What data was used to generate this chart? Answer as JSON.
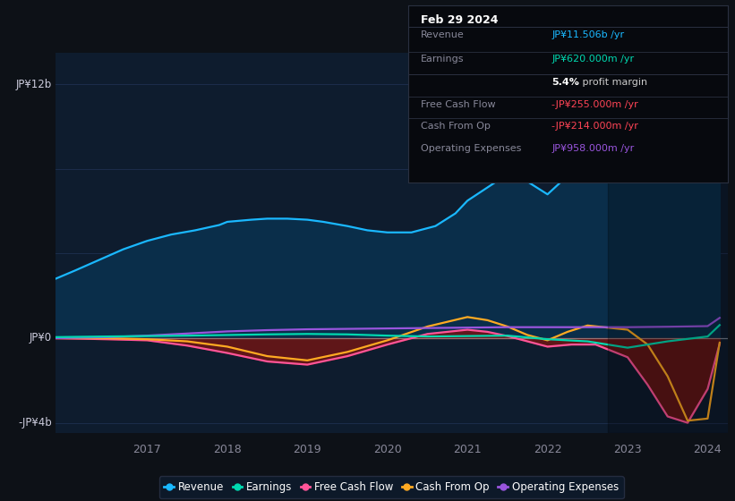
{
  "bg_color": "#0d1117",
  "chart_bg": "#0e1c2e",
  "xlim": [
    2015.85,
    2024.25
  ],
  "ylim": [
    -4.5,
    13.5
  ],
  "x_ticks": [
    2017,
    2018,
    2019,
    2020,
    2021,
    2022,
    2023,
    2024
  ],
  "y_labels": [
    {
      "text": "JP¥12b",
      "y": 12.0
    },
    {
      "text": "JP¥0",
      "y": 0.0
    },
    {
      "text": "-JP¥4b",
      "y": -4.0
    }
  ],
  "revenue": {
    "color": "#1ab8ff",
    "fill": "#0a2e4a",
    "x": [
      2015.85,
      2016.1,
      2016.4,
      2016.7,
      2017.0,
      2017.3,
      2017.6,
      2017.9,
      2018.0,
      2018.3,
      2018.5,
      2018.75,
      2019.0,
      2019.2,
      2019.5,
      2019.75,
      2020.0,
      2020.3,
      2020.6,
      2020.85,
      2021.0,
      2021.2,
      2021.4,
      2021.6,
      2021.75,
      2022.0,
      2022.2,
      2022.5,
      2022.75,
      2023.0,
      2023.2,
      2023.4,
      2023.6,
      2023.8,
      2024.0,
      2024.15
    ],
    "y": [
      2.8,
      3.2,
      3.7,
      4.2,
      4.6,
      4.9,
      5.1,
      5.35,
      5.5,
      5.6,
      5.65,
      5.65,
      5.6,
      5.5,
      5.3,
      5.1,
      5.0,
      5.0,
      5.3,
      5.9,
      6.5,
      7.0,
      7.5,
      7.6,
      7.4,
      6.8,
      7.5,
      8.6,
      9.0,
      9.6,
      10.4,
      9.9,
      9.6,
      9.5,
      9.8,
      11.5
    ]
  },
  "earnings": {
    "color": "#00d9b0",
    "x": [
      2015.85,
      2016.5,
      2017.0,
      2017.5,
      2018.0,
      2018.5,
      2019.0,
      2019.5,
      2020.0,
      2020.5,
      2021.0,
      2021.5,
      2022.0,
      2022.5,
      2022.75,
      2023.0,
      2023.5,
      2024.0,
      2024.15
    ],
    "y": [
      0.05,
      0.08,
      0.1,
      0.12,
      0.15,
      0.18,
      0.2,
      0.18,
      0.12,
      0.08,
      0.1,
      0.12,
      -0.05,
      -0.15,
      -0.3,
      -0.45,
      -0.15,
      0.08,
      0.62
    ]
  },
  "free_cash_flow": {
    "color": "#ff5599",
    "fill": "#6e1515",
    "x": [
      2015.85,
      2016.5,
      2017.0,
      2017.5,
      2018.0,
      2018.5,
      2019.0,
      2019.5,
      2020.0,
      2020.5,
      2021.0,
      2021.25,
      2021.5,
      2021.75,
      2022.0,
      2022.3,
      2022.6,
      2023.0,
      2023.25,
      2023.5,
      2023.75,
      2024.0,
      2024.15
    ],
    "y": [
      0.0,
      -0.05,
      -0.1,
      -0.35,
      -0.7,
      -1.1,
      -1.25,
      -0.85,
      -0.3,
      0.2,
      0.4,
      0.3,
      0.1,
      -0.15,
      -0.4,
      -0.3,
      -0.3,
      -0.9,
      -2.2,
      -3.7,
      -4.0,
      -2.4,
      -0.26
    ]
  },
  "cash_from_op": {
    "color": "#ffaa22",
    "x": [
      2015.85,
      2016.5,
      2017.0,
      2017.5,
      2018.0,
      2018.5,
      2019.0,
      2019.5,
      2020.0,
      2020.5,
      2021.0,
      2021.25,
      2021.5,
      2021.75,
      2022.0,
      2022.25,
      2022.5,
      2023.0,
      2023.25,
      2023.5,
      2023.75,
      2024.0,
      2024.15
    ],
    "y": [
      0.0,
      0.0,
      -0.05,
      -0.15,
      -0.4,
      -0.85,
      -1.05,
      -0.65,
      -0.1,
      0.55,
      1.0,
      0.85,
      0.55,
      0.15,
      -0.1,
      0.3,
      0.6,
      0.4,
      -0.3,
      -1.8,
      -3.9,
      -3.8,
      -0.21
    ]
  },
  "operating_expenses": {
    "color": "#9955dd",
    "x": [
      2015.85,
      2016.5,
      2017.0,
      2017.5,
      2018.0,
      2018.5,
      2019.0,
      2019.5,
      2020.0,
      2020.5,
      2021.0,
      2021.5,
      2022.0,
      2022.5,
      2023.0,
      2023.5,
      2024.0,
      2024.15
    ],
    "y": [
      0.0,
      0.05,
      0.12,
      0.22,
      0.32,
      0.38,
      0.42,
      0.44,
      0.46,
      0.48,
      0.5,
      0.52,
      0.52,
      0.52,
      0.52,
      0.54,
      0.57,
      0.96
    ]
  },
  "dark_span_start": 2022.75,
  "legend": [
    {
      "label": "Revenue",
      "color": "#1ab8ff"
    },
    {
      "label": "Earnings",
      "color": "#00d9b0"
    },
    {
      "label": "Free Cash Flow",
      "color": "#ff5599"
    },
    {
      "label": "Cash From Op",
      "color": "#ffaa22"
    },
    {
      "label": "Operating Expenses",
      "color": "#9955dd"
    }
  ],
  "info_box": {
    "title": "Feb 29 2024",
    "title_color": "#ffffff",
    "label_color": "#888899",
    "divider_color": "#2a3040",
    "bg": "#07090e",
    "rows": [
      {
        "label": "Revenue",
        "value": "JP¥11.506b /yr",
        "vcolor": "#1ab8ff",
        "bold": null
      },
      {
        "label": "Earnings",
        "value": "JP¥620.000m /yr",
        "vcolor": "#00d9b0",
        "bold": null
      },
      {
        "label": "",
        "value": " profit margin",
        "vcolor": "#cccccc",
        "bold": "5.4%"
      },
      {
        "label": "Free Cash Flow",
        "value": "-JP¥255.000m /yr",
        "vcolor": "#ff4455",
        "bold": null
      },
      {
        "label": "Cash From Op",
        "value": "-JP¥214.000m /yr",
        "vcolor": "#ff4455",
        "bold": null
      },
      {
        "label": "Operating Expenses",
        "value": "JP¥958.000m /yr",
        "vcolor": "#9955dd",
        "bold": null
      }
    ]
  }
}
